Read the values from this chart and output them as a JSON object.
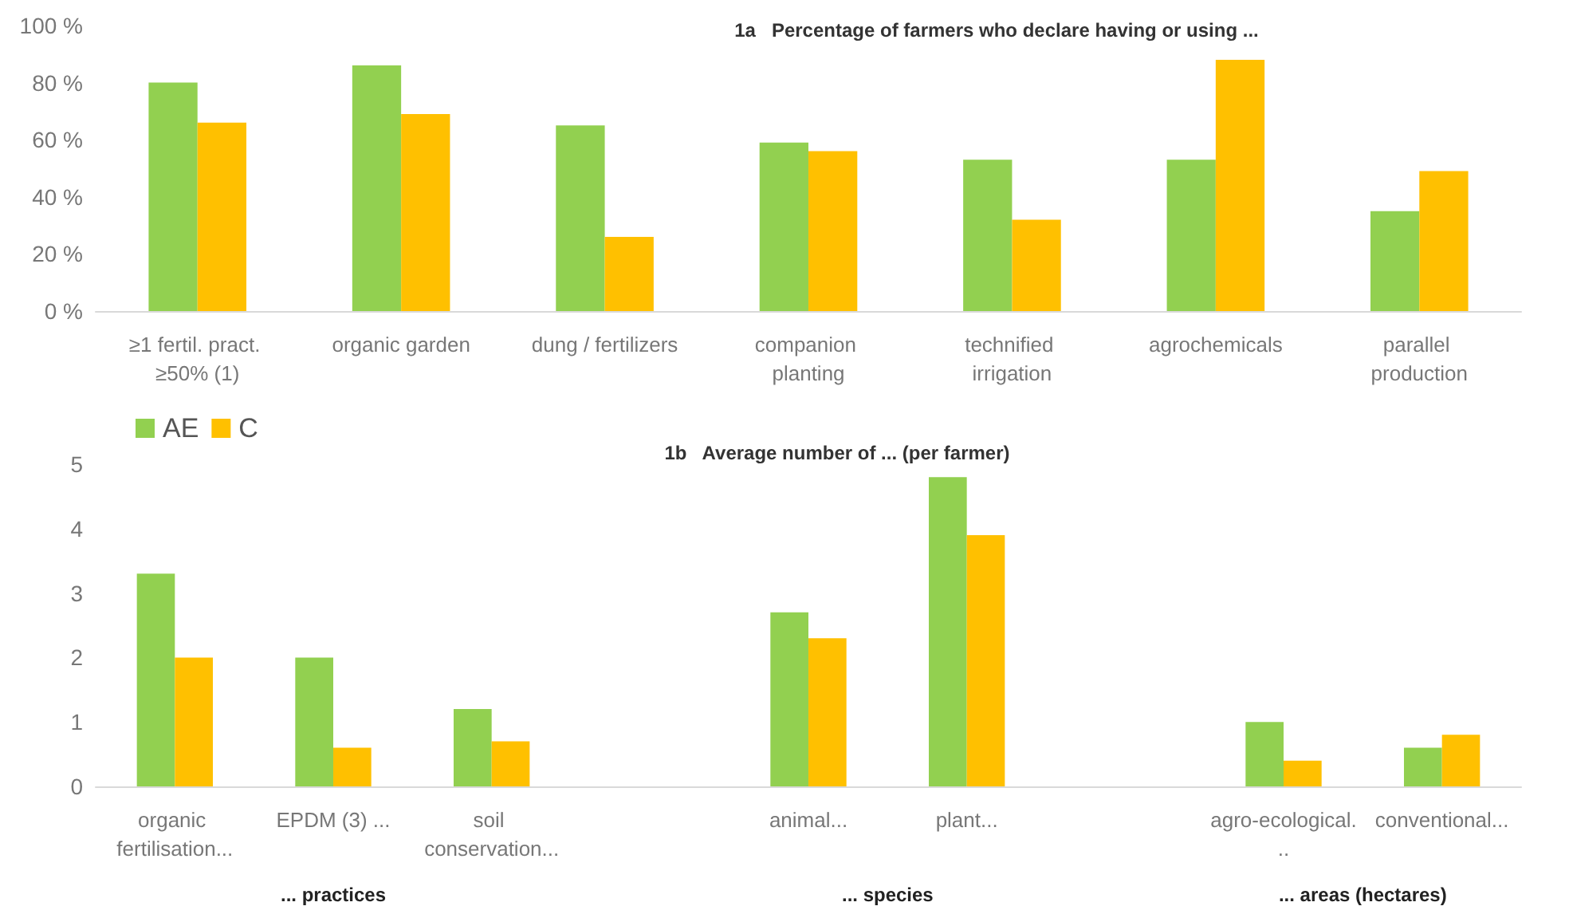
{
  "chart_data": [
    {
      "type": "bar",
      "title": "1a   Percentage of farmers who declare having or using ...",
      "categories": [
        "≥1 fertil. pract. ≥50% (1)",
        "organic garden",
        "dung / fertilizers",
        "companion planting",
        "technified irrigation",
        "agrochemicals",
        "parallel production"
      ],
      "series": [
        {
          "color": "#92d050",
          "values": [
            80,
            86,
            65,
            59,
            53,
            53,
            35
          ]
        },
        {
          "color": "#ffc000",
          "values": [
            66,
            69,
            26,
            56,
            32,
            88,
            49
          ]
        }
      ],
      "ylim": [
        0,
        100
      ],
      "yticks": [
        {
          "value": 0,
          "label": "0 %"
        },
        {
          "value": 20,
          "label": "20 %"
        },
        {
          "value": 40,
          "label": "40 %"
        },
        {
          "value": 60,
          "label": "60 %"
        },
        {
          "value": 80,
          "label": "80 %"
        },
        {
          "value": 100,
          "label": "100 %"
        }
      ],
      "grid": false
    },
    {
      "type": "bar",
      "title": "1b   Average number of ... (per farmer)",
      "categories": [
        "organic fertilisation...",
        "EPDM (3) ...",
        "soil conservation...",
        null,
        "animal...",
        "plant...",
        null,
        "agro-ecological...",
        "conventional..."
      ],
      "series": [
        {
          "name": "AE",
          "color": "#92d050",
          "values": [
            3.3,
            2.0,
            1.2,
            null,
            2.7,
            4.8,
            null,
            1.0,
            0.6
          ]
        },
        {
          "name": "C",
          "color": "#ffc000",
          "values": [
            2.0,
            0.6,
            0.7,
            null,
            2.3,
            3.9,
            null,
            0.4,
            0.8
          ]
        }
      ],
      "ylim": [
        0,
        5
      ],
      "yticks": [
        0,
        1,
        2,
        3,
        4,
        5
      ],
      "grid": false,
      "legend": "top left",
      "annotations": [
        "... practices",
        "... species",
        "... areas (hectares)"
      ]
    }
  ]
}
